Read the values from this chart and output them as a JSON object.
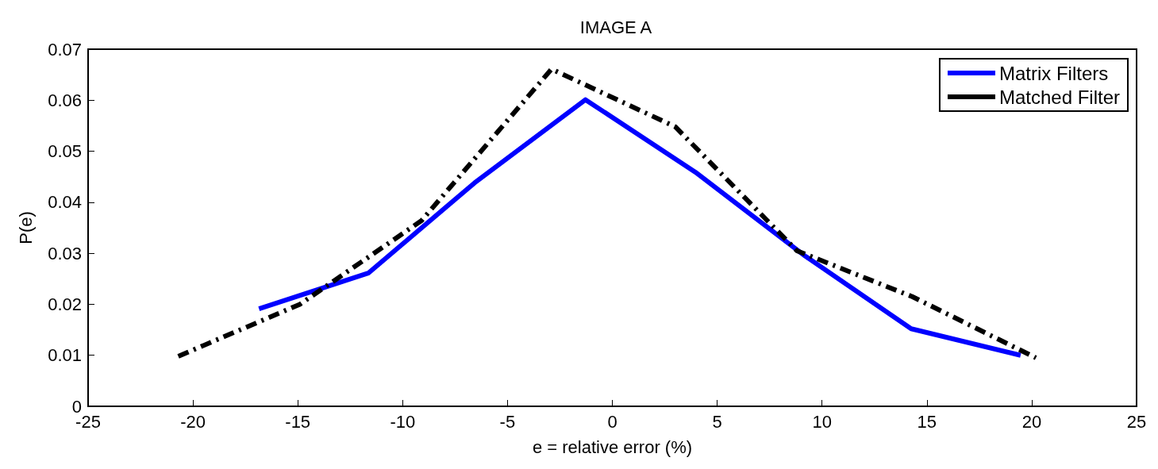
{
  "chart_data": {
    "type": "line",
    "title": "IMAGE A",
    "xlabel": "e = relative error (%)",
    "ylabel": "P(e)",
    "xlim": [
      -25,
      25
    ],
    "xticks": [
      -25,
      -20,
      -15,
      -10,
      -5,
      0,
      5,
      10,
      15,
      20,
      25
    ],
    "ylim": [
      0,
      0.07
    ],
    "yticks": [
      0,
      0.01,
      0.02,
      0.03,
      0.04,
      0.05,
      0.06,
      0.07
    ],
    "grid": false,
    "legend": "top right",
    "marker": "none",
    "series": [
      {
        "name": "Matrix Filters",
        "color": "#0000ff",
        "line_style": "solid",
        "x": [
          -16.85,
          -11.64,
          -6.57,
          -1.28,
          3.96,
          9.18,
          14.25,
          19.47
        ],
        "values": [
          0.0191,
          0.0261,
          0.0438,
          0.0601,
          0.0459,
          0.0295,
          0.0152,
          0.01
        ]
      },
      {
        "name": "Matched Filter",
        "color": "#000000",
        "line_style": "dashed",
        "x": [
          -20.7,
          -14.9,
          -9.1,
          -2.9,
          3.0,
          8.8,
          14.3,
          20.2
        ],
        "values": [
          0.0098,
          0.02,
          0.0364,
          0.0661,
          0.0548,
          0.0305,
          0.0215,
          0.0095
        ]
      }
    ]
  }
}
